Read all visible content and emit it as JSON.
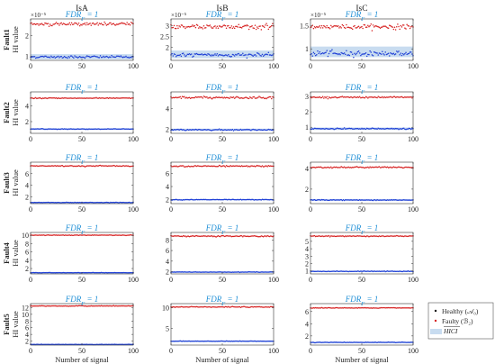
{
  "figure": {
    "columns": [
      "IsA",
      "IsB",
      "IsC"
    ],
    "rows": [
      "Fault1",
      "Fault2",
      "Fault3",
      "Fault4",
      "Fault5"
    ],
    "ylabel": "HI value",
    "xlabel": "Number of signal",
    "sci_label": "×10⁻⁵",
    "fdr_label": "FDR_F = 1"
  },
  "legend": {
    "healthy": "Healthy (𝒜₀)",
    "faulty": "Faulty (ℬ₂)",
    "hici": "HICI"
  },
  "colors": {
    "healthy": "#1f3fd6",
    "faulty": "#d62020",
    "hici_band": "#c8dcf0",
    "fdr_text": "#1f8fd6",
    "axis": "#333333"
  },
  "chart_data": [
    {
      "type": "scatter",
      "row": "Fault1",
      "col": "IsA",
      "xlim": [
        0,
        100
      ],
      "ylim": [
        0.8,
        2.8
      ],
      "yticks": [
        1,
        2
      ],
      "healthy_mean": 0.97,
      "healthy_spread": 0.06,
      "faulty_mean": 2.55,
      "faulty_spread": 0.08,
      "hici": [
        0.85,
        1.1
      ],
      "show_sci": true
    },
    {
      "type": "scatter",
      "row": "Fault1",
      "col": "IsB",
      "xlim": [
        0,
        100
      ],
      "ylim": [
        1.4,
        3.3
      ],
      "yticks": [
        2,
        2.5,
        3
      ],
      "healthy_mean": 1.65,
      "healthy_spread": 0.08,
      "faulty_mean": 2.95,
      "faulty_spread": 0.12,
      "hici": [
        1.5,
        1.85
      ],
      "show_sci": true
    },
    {
      "type": "scatter",
      "row": "Fault1",
      "col": "IsC",
      "xlim": [
        0,
        100
      ],
      "ylim": [
        0.75,
        1.65
      ],
      "yticks": [
        1,
        1.5
      ],
      "healthy_mean": 0.9,
      "healthy_spread": 0.06,
      "faulty_mean": 1.48,
      "faulty_spread": 0.05,
      "hici": [
        0.82,
        1.05
      ],
      "show_sci": true
    },
    {
      "type": "scatter",
      "row": "Fault2",
      "col": "IsA",
      "xlim": [
        0,
        100
      ],
      "ylim": [
        0.5,
        5.8
      ],
      "yticks": [
        2,
        4
      ],
      "healthy_mean": 1.05,
      "healthy_spread": 0.05,
      "faulty_mean": 5.0,
      "faulty_spread": 0.05,
      "hici": [
        0.95,
        1.15
      ],
      "show_sci": false
    },
    {
      "type": "scatter",
      "row": "Fault2",
      "col": "IsB",
      "xlim": [
        0,
        100
      ],
      "ylim": [
        1.6,
        5.6
      ],
      "yticks": [
        2,
        4
      ],
      "healthy_mean": 1.95,
      "healthy_spread": 0.06,
      "faulty_mean": 5.05,
      "faulty_spread": 0.1,
      "hici": [
        1.85,
        2.05
      ],
      "show_sci": false
    },
    {
      "type": "scatter",
      "row": "Fault2",
      "col": "IsC",
      "xlim": [
        0,
        100
      ],
      "ylim": [
        0.6,
        3.3
      ],
      "yticks": [
        1,
        2,
        3
      ],
      "healthy_mean": 0.9,
      "healthy_spread": 0.04,
      "faulty_mean": 2.95,
      "faulty_spread": 0.05,
      "hici": [
        0.82,
        0.98
      ],
      "show_sci": false
    },
    {
      "type": "scatter",
      "row": "Fault3",
      "col": "IsA",
      "xlim": [
        0,
        100
      ],
      "ylim": [
        0.8,
        8.0
      ],
      "yticks": [
        2,
        4,
        6
      ],
      "healthy_mean": 1.0,
      "healthy_spread": 0.05,
      "faulty_mean": 7.35,
      "faulty_spread": 0.1,
      "hici": [
        0.9,
        1.1
      ],
      "show_sci": false
    },
    {
      "type": "scatter",
      "row": "Fault3",
      "col": "IsB",
      "xlim": [
        0,
        100
      ],
      "ylim": [
        1.4,
        7.7
      ],
      "yticks": [
        2,
        4,
        6
      ],
      "healthy_mean": 2.0,
      "healthy_spread": 0.05,
      "faulty_mean": 7.1,
      "faulty_spread": 0.1,
      "hici": [
        1.9,
        2.1
      ],
      "show_sci": false
    },
    {
      "type": "scatter",
      "row": "Fault3",
      "col": "IsC",
      "xlim": [
        0,
        100
      ],
      "ylim": [
        0.6,
        4.6
      ],
      "yticks": [
        2,
        4
      ],
      "healthy_mean": 0.95,
      "healthy_spread": 0.04,
      "faulty_mean": 4.1,
      "faulty_spread": 0.07,
      "hici": [
        0.88,
        1.02
      ],
      "show_sci": false
    },
    {
      "type": "scatter",
      "row": "Fault4",
      "col": "IsA",
      "xlim": [
        0,
        100
      ],
      "ylim": [
        0.7,
        10.7
      ],
      "yticks": [
        2,
        4,
        6,
        8,
        10
      ],
      "healthy_mean": 1.0,
      "healthy_spread": 0.04,
      "faulty_mean": 10.05,
      "faulty_spread": 0.06,
      "hici": [
        0.9,
        1.1
      ],
      "show_sci": false
    },
    {
      "type": "scatter",
      "row": "Fault4",
      "col": "IsB",
      "xlim": [
        0,
        100
      ],
      "ylim": [
        1.6,
        9.4
      ],
      "yticks": [
        2,
        4,
        6,
        8
      ],
      "healthy_mean": 1.95,
      "healthy_spread": 0.04,
      "faulty_mean": 8.7,
      "faulty_spread": 0.1,
      "hici": [
        1.85,
        2.05
      ],
      "show_sci": false
    },
    {
      "type": "scatter",
      "row": "Fault4",
      "col": "IsC",
      "xlim": [
        0,
        100
      ],
      "ylim": [
        0.6,
        6.2
      ],
      "yticks": [
        1,
        2,
        3,
        4,
        5
      ],
      "healthy_mean": 0.95,
      "healthy_spread": 0.04,
      "faulty_mean": 5.7,
      "faulty_spread": 0.06,
      "hici": [
        0.88,
        1.02
      ],
      "show_sci": false
    },
    {
      "type": "scatter",
      "row": "Fault5",
      "col": "IsA",
      "xlim": [
        0,
        100
      ],
      "ylim": [
        0.8,
        13.2
      ],
      "yticks": [
        2,
        4,
        6,
        8,
        10,
        12
      ],
      "healthy_mean": 1.0,
      "healthy_spread": 0.04,
      "faulty_mean": 12.5,
      "faulty_spread": 0.08,
      "hici": [
        0.9,
        1.1
      ],
      "show_sci": false
    },
    {
      "type": "scatter",
      "row": "Fault5",
      "col": "IsB",
      "xlim": [
        0,
        100
      ],
      "ylim": [
        1.0,
        11.0
      ],
      "yticks": [
        5,
        10
      ],
      "healthy_mean": 1.95,
      "healthy_spread": 0.05,
      "faulty_mean": 10.2,
      "faulty_spread": 0.1,
      "hici": [
        1.85,
        2.05
      ],
      "show_sci": false
    },
    {
      "type": "scatter",
      "row": "Fault5",
      "col": "IsC",
      "xlim": [
        0,
        100
      ],
      "ylim": [
        0.5,
        7.3
      ],
      "yticks": [
        2,
        4,
        6
      ],
      "healthy_mean": 0.95,
      "healthy_spread": 0.04,
      "faulty_mean": 6.6,
      "faulty_spread": 0.05,
      "hici": [
        0.88,
        1.02
      ],
      "show_sci": false
    }
  ]
}
